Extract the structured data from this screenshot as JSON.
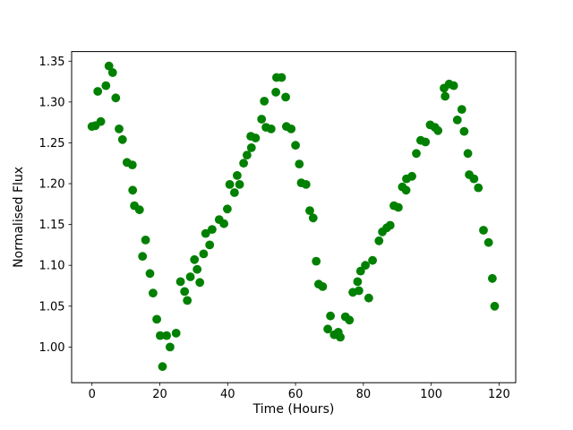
{
  "figure": {
    "background": "#ffffff"
  },
  "chart_data": {
    "type": "scatter",
    "title": "",
    "xlabel": "Time (Hours)",
    "ylabel": "Normalised Flux",
    "x_tick_values": [
      0,
      20,
      40,
      60,
      80,
      100,
      120
    ],
    "x_tick_labels": [
      "0",
      "20",
      "40",
      "60",
      "80",
      "100",
      "120"
    ],
    "y_tick_values": [
      1.0,
      1.05,
      1.1,
      1.15,
      1.2,
      1.25,
      1.3,
      1.35
    ],
    "y_tick_labels": [
      "1.00",
      "1.05",
      "1.10",
      "1.15",
      "1.20",
      "1.25",
      "1.30",
      "1.35"
    ],
    "xlim": [
      -6.0,
      124.9
    ],
    "ylim": [
      0.9563,
      1.3617
    ],
    "grid": false,
    "legend": "none",
    "marker": "circle",
    "marker_color": "#008000",
    "marker_radius_px": 4.9,
    "points": [
      [
        0.0,
        1.27
      ],
      [
        1.0,
        1.271
      ],
      [
        1.7,
        1.313
      ],
      [
        2.6,
        1.276
      ],
      [
        4.1,
        1.32
      ],
      [
        5.0,
        1.344
      ],
      [
        6.1,
        1.336
      ],
      [
        7.0,
        1.305
      ],
      [
        8.0,
        1.267
      ],
      [
        9.0,
        1.254
      ],
      [
        10.3,
        1.226
      ],
      [
        11.9,
        1.223
      ],
      [
        12.0,
        1.192
      ],
      [
        12.5,
        1.173
      ],
      [
        14.0,
        1.168
      ],
      [
        14.9,
        1.111
      ],
      [
        15.8,
        1.131
      ],
      [
        17.1,
        1.09
      ],
      [
        18.0,
        1.066
      ],
      [
        19.1,
        1.034
      ],
      [
        20.1,
        1.014
      ],
      [
        20.8,
        0.976
      ],
      [
        22.0,
        1.014
      ],
      [
        23.0,
        1.0
      ],
      [
        24.8,
        1.017
      ],
      [
        26.1,
        1.08
      ],
      [
        27.3,
        1.068
      ],
      [
        28.1,
        1.057
      ],
      [
        29.0,
        1.086
      ],
      [
        30.2,
        1.107
      ],
      [
        31.0,
        1.095
      ],
      [
        31.8,
        1.079
      ],
      [
        32.9,
        1.114
      ],
      [
        33.5,
        1.139
      ],
      [
        34.7,
        1.125
      ],
      [
        35.4,
        1.144
      ],
      [
        37.5,
        1.156
      ],
      [
        38.9,
        1.151
      ],
      [
        39.9,
        1.169
      ],
      [
        40.6,
        1.199
      ],
      [
        42.0,
        1.189
      ],
      [
        42.8,
        1.21
      ],
      [
        43.5,
        1.199
      ],
      [
        44.7,
        1.225
      ],
      [
        45.7,
        1.235
      ],
      [
        46.8,
        1.258
      ],
      [
        47.0,
        1.244
      ],
      [
        48.2,
        1.256
      ],
      [
        50.0,
        1.279
      ],
      [
        50.8,
        1.301
      ],
      [
        51.3,
        1.269
      ],
      [
        52.8,
        1.267
      ],
      [
        54.2,
        1.312
      ],
      [
        54.4,
        1.33
      ],
      [
        55.9,
        1.33
      ],
      [
        57.1,
        1.306
      ],
      [
        57.3,
        1.27
      ],
      [
        58.7,
        1.267
      ],
      [
        60.0,
        1.247
      ],
      [
        61.1,
        1.224
      ],
      [
        61.7,
        1.201
      ],
      [
        63.1,
        1.199
      ],
      [
        64.2,
        1.167
      ],
      [
        65.2,
        1.158
      ],
      [
        66.1,
        1.105
      ],
      [
        66.8,
        1.077
      ],
      [
        68.0,
        1.074
      ],
      [
        69.5,
        1.022
      ],
      [
        70.3,
        1.038
      ],
      [
        71.4,
        1.015
      ],
      [
        72.6,
        1.018
      ],
      [
        73.2,
        1.012
      ],
      [
        74.7,
        1.037
      ],
      [
        75.9,
        1.033
      ],
      [
        76.9,
        1.067
      ],
      [
        78.3,
        1.08
      ],
      [
        78.7,
        1.069
      ],
      [
        79.2,
        1.093
      ],
      [
        80.6,
        1.1
      ],
      [
        81.6,
        1.06
      ],
      [
        82.7,
        1.106
      ],
      [
        84.6,
        1.13
      ],
      [
        85.6,
        1.141
      ],
      [
        86.9,
        1.146
      ],
      [
        87.9,
        1.149
      ],
      [
        89.0,
        1.173
      ],
      [
        90.3,
        1.171
      ],
      [
        91.5,
        1.196
      ],
      [
        92.6,
        1.192
      ],
      [
        92.7,
        1.206
      ],
      [
        94.3,
        1.209
      ],
      [
        95.6,
        1.237
      ],
      [
        96.9,
        1.253
      ],
      [
        98.3,
        1.251
      ],
      [
        99.7,
        1.272
      ],
      [
        101.1,
        1.269
      ],
      [
        102.0,
        1.265
      ],
      [
        103.8,
        1.317
      ],
      [
        104.1,
        1.307
      ],
      [
        105.3,
        1.322
      ],
      [
        106.6,
        1.32
      ],
      [
        107.7,
        1.278
      ],
      [
        109.0,
        1.291
      ],
      [
        109.7,
        1.264
      ],
      [
        110.8,
        1.237
      ],
      [
        111.2,
        1.211
      ],
      [
        112.6,
        1.206
      ],
      [
        113.9,
        1.195
      ],
      [
        115.4,
        1.143
      ],
      [
        116.9,
        1.128
      ],
      [
        118.0,
        1.084
      ],
      [
        118.7,
        1.05
      ]
    ]
  }
}
